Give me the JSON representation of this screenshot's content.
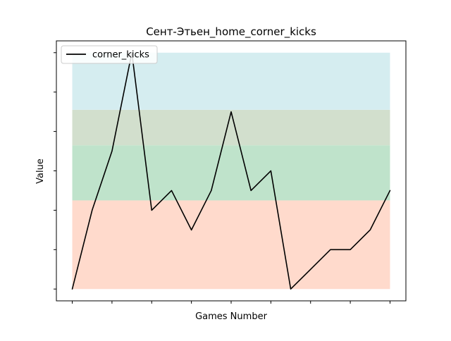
{
  "chart_data": {
    "type": "line",
    "title": "Сент-Этьен_home_corner_kicks",
    "xlabel": "Games Number",
    "ylabel": "Value",
    "x": [
      0,
      1,
      2,
      3,
      4,
      5,
      6,
      7,
      8,
      9,
      10,
      11,
      12,
      13,
      14,
      15,
      16
    ],
    "series": [
      {
        "name": "corner_kicks",
        "color": "#000000",
        "values": [
          0,
          4,
          7,
          12,
          4,
          5,
          3,
          5,
          9,
          5,
          6,
          0,
          1,
          2,
          2,
          3,
          5
        ]
      }
    ],
    "xlim": [
      -0.8,
      16.8
    ],
    "ylim": [
      -0.6,
      12.6
    ],
    "x_ticks": [
      0,
      2,
      4,
      6,
      8,
      10,
      12,
      14,
      16
    ],
    "y_ticks": [
      0,
      2,
      4,
      6,
      8,
      10,
      12
    ],
    "bands": [
      {
        "from": 0,
        "to": 4.5,
        "color": "#ffdacc"
      },
      {
        "from": 4.5,
        "to": 7.3,
        "color": "#bfe3cb"
      },
      {
        "from": 7.3,
        "to": 9.1,
        "color": "#d2dfcd"
      },
      {
        "from": 9.1,
        "to": 12,
        "color": "#d5edf0"
      }
    ],
    "legend": {
      "position": "upper left"
    },
    "grid": false
  }
}
